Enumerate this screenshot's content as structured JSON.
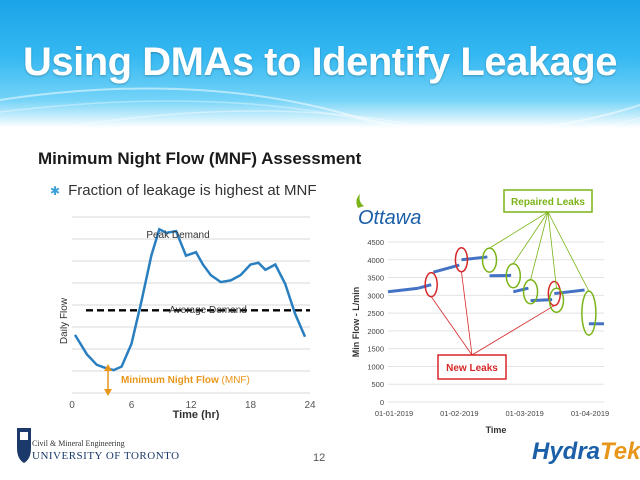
{
  "slide": {
    "title": "Using DMAs to Identify Leakage",
    "subtitle": "Minimum Night Flow (MNF) Assessment",
    "bullet": "Fraction of leakage is highest at MNF",
    "page_number": "12"
  },
  "footer": {
    "university_line1": "Civil & Mineral Engineering",
    "university_line2": "UNIVERSITY OF TORONTO",
    "brand_part1": "Hydra",
    "brand_part2": "Tek"
  },
  "colors": {
    "accent": "#1aa3e8",
    "mnf_label": "#e8961a",
    "repaired": "#7ab317",
    "new_leaks": "#d62728",
    "series_blue": "#4472c4"
  },
  "chart_data": [
    {
      "type": "line",
      "xlabel": "Time (hr)",
      "ylabel": "Daily Flow",
      "xlim": [
        0,
        24
      ],
      "x_ticks": [
        "0",
        "6",
        "12",
        "18",
        "24"
      ],
      "grid": true,
      "series": [
        {
          "x": [
            0.3,
            1.5,
            2.5,
            3.5,
            4.2,
            5,
            6,
            7,
            8,
            8.8,
            9.5,
            10.5,
            11.5,
            12.5,
            13.2,
            14,
            15,
            16,
            17,
            18,
            18.8,
            19.5,
            20.5,
            21.5,
            22.5,
            23.5
          ],
          "y": [
            0.33,
            0.22,
            0.16,
            0.14,
            0.13,
            0.15,
            0.28,
            0.52,
            0.78,
            0.93,
            0.91,
            0.92,
            0.78,
            0.8,
            0.73,
            0.67,
            0.63,
            0.64,
            0.67,
            0.73,
            0.74,
            0.7,
            0.73,
            0.62,
            0.45,
            0.32
          ]
        }
      ],
      "reference_lines": [
        {
          "y": 0.47
        }
      ],
      "annotations": {
        "peak": "Peak Demand",
        "average": "Average Demand",
        "mnf": "Minimum Night Flow",
        "mnf_abbr": "(MNF)"
      }
    },
    {
      "type": "scatter",
      "logo_text": "Ottawa",
      "xlabel": "Time",
      "ylabel": "Min Flow - L/min",
      "ylim": [
        0,
        4500
      ],
      "y_ticks": [
        "0",
        "500",
        "1000",
        "1500",
        "2000",
        "2500",
        "3000",
        "3500",
        "4000",
        "4500"
      ],
      "x_ticks": [
        "01-01-2019",
        "01-02-2019",
        "01-03-2019",
        "01-04-2019"
      ],
      "segments": [
        {
          "t": [
            0,
            0.14
          ],
          "y": [
            3100,
            3200
          ]
        },
        {
          "t": [
            0.14,
            0.2
          ],
          "y": [
            3200,
            3300
          ]
        },
        {
          "t": [
            0.21,
            0.33
          ],
          "y": [
            3650,
            3850
          ]
        },
        {
          "t": [
            0.34,
            0.46
          ],
          "y": [
            4000,
            4080
          ]
        },
        {
          "t": [
            0.47,
            0.57
          ],
          "y": [
            3550,
            3560
          ]
        },
        {
          "t": [
            0.58,
            0.65
          ],
          "y": [
            3100,
            3200
          ]
        },
        {
          "t": [
            0.66,
            0.76
          ],
          "y": [
            2850,
            2880
          ]
        },
        {
          "t": [
            0.77,
            0.91
          ],
          "y": [
            3050,
            3150
          ]
        },
        {
          "t": [
            0.93,
            1.0
          ],
          "y": [
            2200,
            2200
          ]
        }
      ],
      "callouts": {
        "repaired": "Repaired Leaks",
        "new": "New Leaks"
      }
    }
  ]
}
